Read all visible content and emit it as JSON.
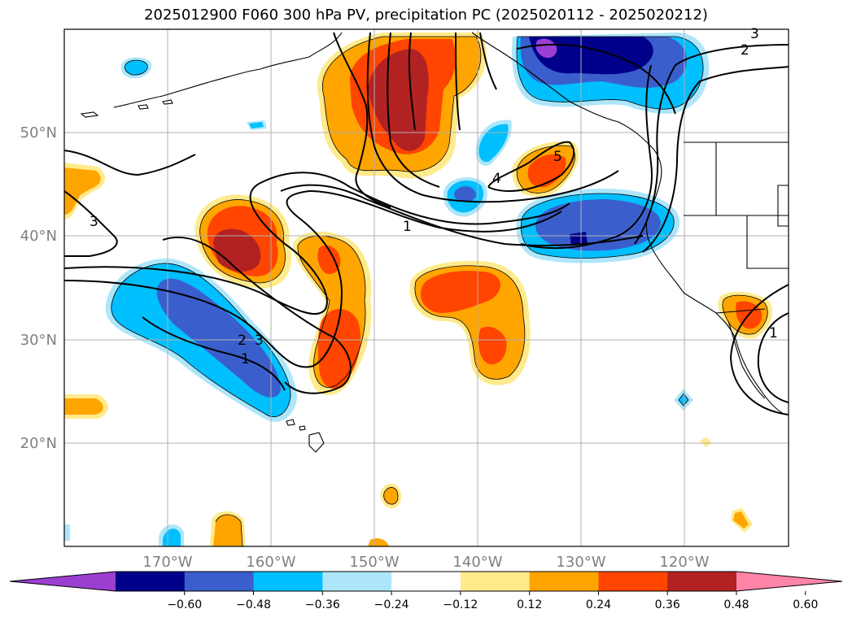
{
  "title": "2025012900 F060 300 hPa PV, precipitation PC (2025020112 - 2025020212)",
  "lat_labels": [
    "50°N",
    "40°N",
    "30°N",
    "20°N"
  ],
  "lon_labels": [
    "170°W",
    "160°W",
    "150°W",
    "140°W",
    "130°W",
    "120°W"
  ],
  "colorbar": {
    "ticks": [
      "−0.60",
      "−0.48",
      "−0.36",
      "−0.24",
      "−0.12",
      "0.12",
      "0.24",
      "0.36",
      "0.48",
      "0.60"
    ],
    "colors": [
      "#9b3fd1",
      "#00008b",
      "#3a5fcd",
      "#00bfff",
      "#ade6fb",
      "#ffffff",
      "#ffea8c",
      "#ffa500",
      "#ff4500",
      "#b22222",
      "#ff85a8"
    ]
  },
  "contour_labels": [
    "1",
    "2",
    "3",
    "4",
    "5"
  ]
}
